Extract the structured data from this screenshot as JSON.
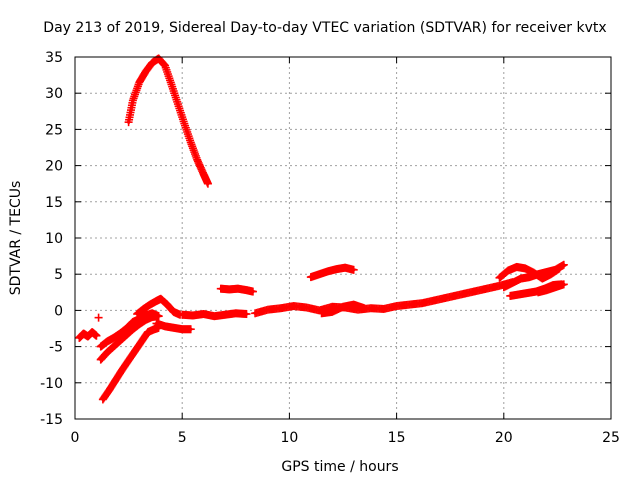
{
  "chart_data": {
    "type": "scatter",
    "title": "Day 213 of 2019, Sidereal Day-to-day VTEC variation (SDTVAR) for receiver kvtx",
    "xlabel": "GPS time / hours",
    "ylabel": "SDTVAR / TECUs",
    "xlim": [
      0,
      25
    ],
    "ylim": [
      -15,
      35
    ],
    "x_ticks": [
      0,
      5,
      10,
      15,
      20,
      25
    ],
    "y_ticks": [
      -15,
      -10,
      -5,
      0,
      5,
      10,
      15,
      20,
      25,
      30,
      35
    ],
    "grid": true,
    "series": [
      {
        "name": "SDTVAR",
        "color": "#ff0000",
        "marker": "plus",
        "segments": [
          {
            "x": [
              0.2,
              0.4,
              0.6,
              0.8,
              1.0
            ],
            "y": [
              -3.8,
              -3.2,
              -3.6,
              -3.0,
              -3.5
            ]
          },
          {
            "x": [
              1.1
            ],
            "y": [
              -1.0
            ]
          },
          {
            "x": [
              1.3,
              1.6,
              1.9,
              2.2,
              2.5,
              2.8,
              3.1,
              3.4,
              3.7,
              3.9
            ],
            "y": [
              -12.3,
              -11.0,
              -9.6,
              -8.2,
              -6.9,
              -5.6,
              -4.3,
              -3.0,
              -2.6,
              -2.4
            ]
          },
          {
            "x": [
              1.2,
              1.5,
              1.8,
              2.1,
              2.4,
              2.7,
              3.0,
              3.3,
              3.6,
              3.9
            ],
            "y": [
              -6.8,
              -5.8,
              -5.0,
              -4.2,
              -3.4,
              -2.6,
              -1.9,
              -1.3,
              -0.9,
              -0.8
            ]
          },
          {
            "x": [
              1.2,
              1.5,
              1.8,
              2.1,
              2.4,
              2.7,
              3.0,
              3.3,
              3.6,
              3.9
            ],
            "y": [
              -5.0,
              -4.3,
              -3.8,
              -3.2,
              -2.5,
              -1.6,
              -1.2,
              -0.7,
              -0.4,
              -0.8
            ]
          },
          {
            "x": [
              2.5,
              2.7,
              3.0,
              3.3,
              3.6,
              3.9,
              4.2,
              4.5,
              4.8,
              5.1,
              5.4,
              5.7,
              6.0,
              6.2
            ],
            "y": [
              26.0,
              29.0,
              31.5,
              33.0,
              34.2,
              34.8,
              33.8,
              31.2,
              28.5,
              25.8,
              23.2,
              20.8,
              18.8,
              17.5
            ]
          },
          {
            "x": [
              2.9,
              3.2,
              3.5,
              3.8,
              4.0,
              4.3,
              4.6,
              4.9
            ],
            "y": [
              -0.5,
              0.2,
              0.8,
              1.3,
              1.6,
              0.8,
              -0.2,
              -0.6
            ]
          },
          {
            "x": [
              3.8,
              4.2,
              4.6,
              5.0,
              5.4
            ],
            "y": [
              -1.8,
              -2.2,
              -2.4,
              -2.6,
              -2.6
            ]
          },
          {
            "x": [
              5.0,
              5.5,
              6.0,
              6.5,
              7.0,
              7.5,
              8.0
            ],
            "y": [
              -0.6,
              -0.7,
              -0.5,
              -0.8,
              -0.6,
              -0.4,
              -0.5
            ]
          },
          {
            "x": [
              6.8,
              7.2,
              7.6,
              8.0,
              8.3
            ],
            "y": [
              3.0,
              2.9,
              3.0,
              2.8,
              2.6
            ]
          },
          {
            "x": [
              8.4,
              9.0,
              9.6,
              10.2,
              10.8,
              11.4,
              12.0,
              12.6,
              13.2,
              13.8,
              14.4,
              15.0,
              15.6,
              16.2,
              16.8,
              17.4,
              18.0,
              18.6,
              19.2,
              19.8,
              20.4
            ],
            "y": [
              -0.4,
              0.1,
              0.3,
              0.6,
              0.4,
              0.0,
              0.5,
              0.4,
              0.1,
              0.3,
              0.2,
              0.6,
              0.8,
              1.0,
              1.4,
              1.8,
              2.2,
              2.6,
              3.0,
              3.4,
              3.9
            ]
          },
          {
            "x": [
              11.0,
              11.4,
              11.8,
              12.2,
              12.6,
              13.0
            ],
            "y": [
              4.6,
              5.0,
              5.4,
              5.7,
              5.9,
              5.6
            ]
          },
          {
            "x": [
              11.5,
              12.0,
              12.5,
              13.0,
              13.5
            ],
            "y": [
              -0.4,
              -0.2,
              0.5,
              0.8,
              0.3
            ]
          },
          {
            "x": [
              19.8,
              20.2,
              20.6,
              21.0,
              21.4,
              21.8,
              22.2,
              22.6
            ],
            "y": [
              4.5,
              5.5,
              6.0,
              5.8,
              5.2,
              4.4,
              5.0,
              5.8
            ]
          },
          {
            "x": [
              20.0,
              20.4,
              20.8,
              21.2,
              21.6,
              22.0,
              22.4,
              22.8
            ],
            "y": [
              3.2,
              3.8,
              4.4,
              4.6,
              5.0,
              5.3,
              5.6,
              6.3
            ]
          },
          {
            "x": [
              20.3,
              20.7,
              21.1,
              21.5,
              21.9,
              22.3,
              22.7
            ],
            "y": [
              2.0,
              2.2,
              2.4,
              2.6,
              3.0,
              3.5,
              3.6
            ]
          },
          {
            "x": [
              21.6,
              22.0,
              22.4,
              22.8
            ],
            "y": [
              2.5,
              2.8,
              3.2,
              3.6
            ]
          }
        ]
      }
    ]
  },
  "colors": {
    "data": "#ff0000",
    "grid": "#a0a0a0",
    "axis": "#000000",
    "background": "#ffffff"
  }
}
